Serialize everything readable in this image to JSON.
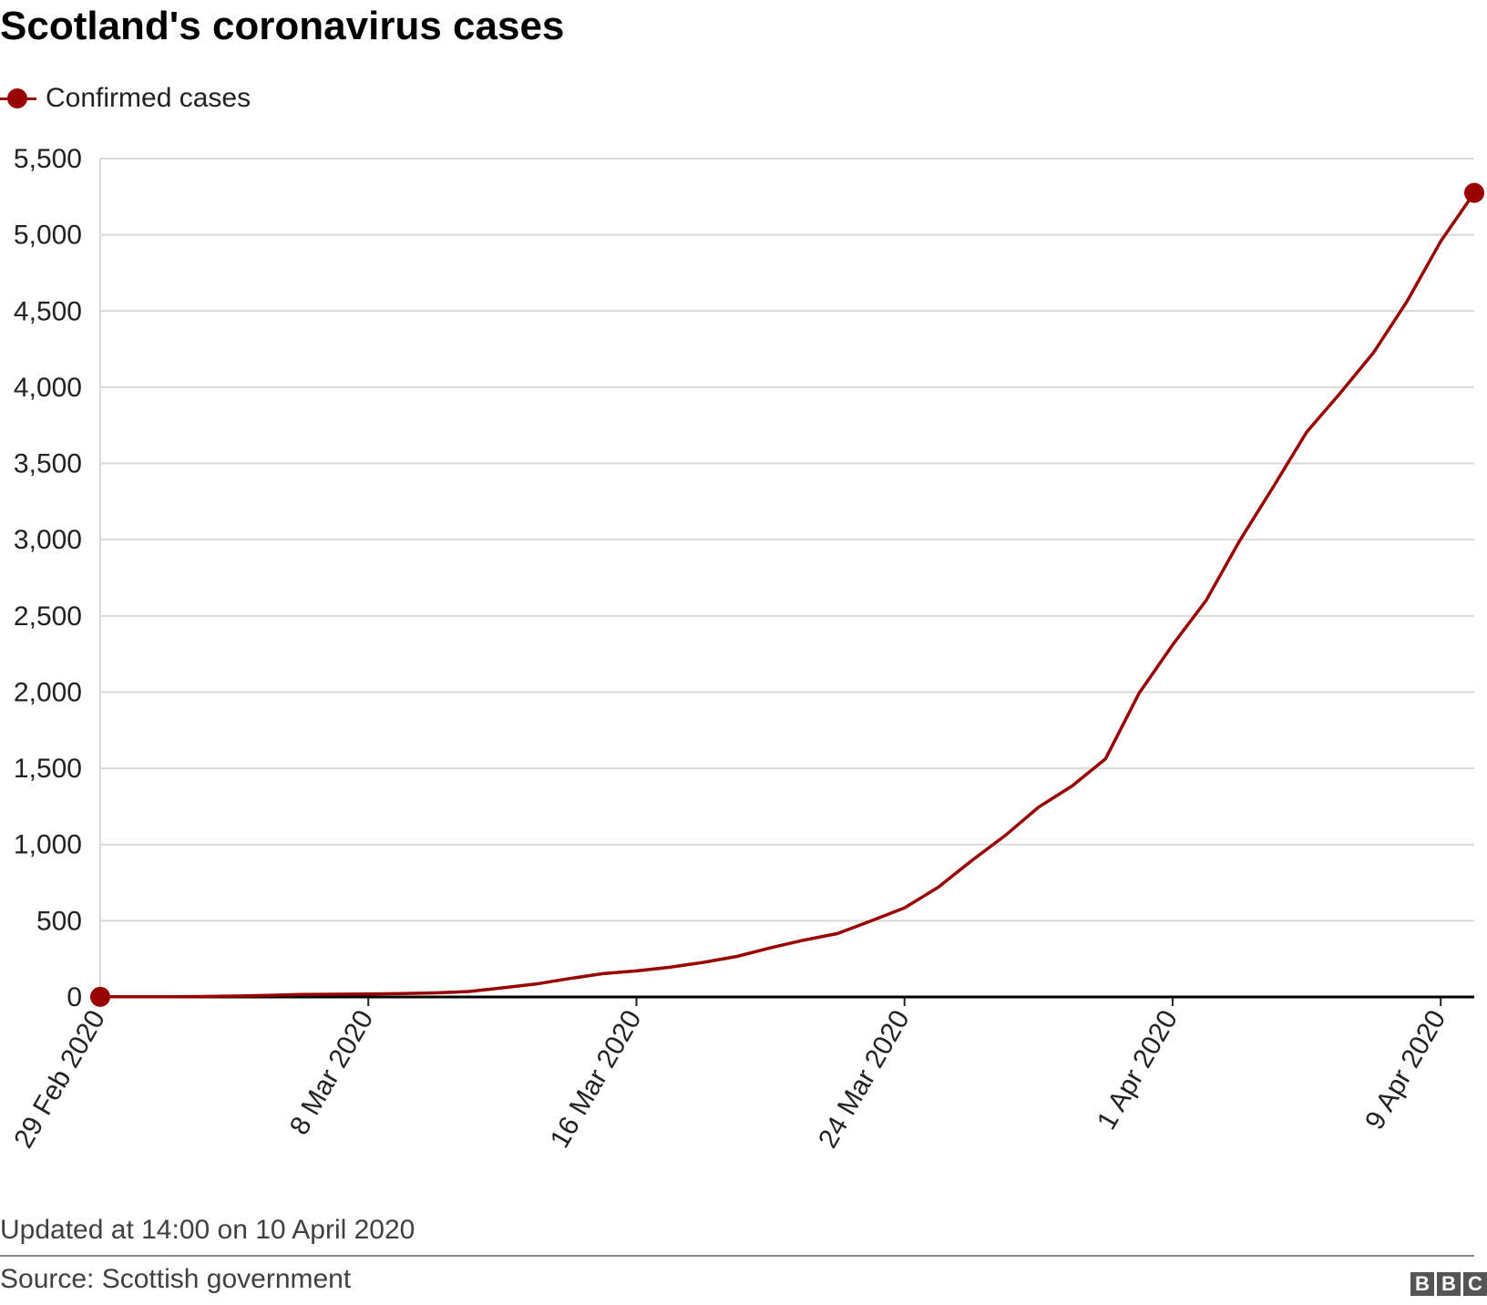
{
  "title": "Scotland's coronavirus cases",
  "legend": {
    "label": "Confirmed cases"
  },
  "chart_data": {
    "type": "line",
    "title": "Scotland's coronavirus cases",
    "xlabel": "",
    "ylabel": "",
    "ylim": [
      0,
      5500
    ],
    "yticks": [
      0,
      500,
      1000,
      1500,
      2000,
      2500,
      3000,
      3500,
      4000,
      4500,
      5000,
      5500
    ],
    "ytick_labels": [
      "0",
      "500",
      "1,000",
      "1,500",
      "2,000",
      "2,500",
      "3,000",
      "3,500",
      "4,000",
      "4,500",
      "5,000",
      "5,500"
    ],
    "xlim": [
      "2020-02-29",
      "2020-04-10"
    ],
    "xticks": [
      "2020-02-29",
      "2020-03-08",
      "2020-03-16",
      "2020-03-24",
      "2020-04-01",
      "2020-04-09"
    ],
    "xtick_labels": [
      "29 Feb 2020",
      "8 Mar 2020",
      "16 Mar 2020",
      "24 Mar 2020",
      "1 Apr 2020",
      "9 Apr 2020"
    ],
    "grid": true,
    "legend_position": "top-left",
    "colors": {
      "series": "#990000",
      "grid": "#d9d9d9",
      "axis": "#000000"
    },
    "series": [
      {
        "name": "Confirmed cases",
        "x": [
          "2020-02-29",
          "2020-03-01",
          "2020-03-02",
          "2020-03-03",
          "2020-03-04",
          "2020-03-05",
          "2020-03-06",
          "2020-03-07",
          "2020-03-08",
          "2020-03-09",
          "2020-03-10",
          "2020-03-11",
          "2020-03-12",
          "2020-03-13",
          "2020-03-14",
          "2020-03-15",
          "2020-03-16",
          "2020-03-17",
          "2020-03-18",
          "2020-03-19",
          "2020-03-20",
          "2020-03-21",
          "2020-03-22",
          "2020-03-23",
          "2020-03-24",
          "2020-03-25",
          "2020-03-26",
          "2020-03-27",
          "2020-03-28",
          "2020-03-29",
          "2020-03-30",
          "2020-03-31",
          "2020-04-01",
          "2020-04-02",
          "2020-04-03",
          "2020-04-04",
          "2020-04-05",
          "2020-04-06",
          "2020-04-07",
          "2020-04-08",
          "2020-04-09",
          "2020-04-10"
        ],
        "values": [
          1,
          1,
          1,
          3,
          6,
          11,
          16,
          18,
          19,
          23,
          27,
          36,
          60,
          85,
          121,
          153,
          171,
          195,
          227,
          266,
          322,
          373,
          416,
          499,
          584,
          719,
          894,
          1059,
          1245,
          1384,
          1563,
          1993,
          2310,
          2602,
          2993,
          3345,
          3706,
          3961,
          4229,
          4565,
          4957,
          5275
        ]
      }
    ],
    "markers": [
      "first",
      "last"
    ]
  },
  "footer": {
    "updated": "Updated at 14:00 on 10 April 2020",
    "source": "Source: Scottish government",
    "logo": [
      "B",
      "B",
      "C"
    ]
  }
}
